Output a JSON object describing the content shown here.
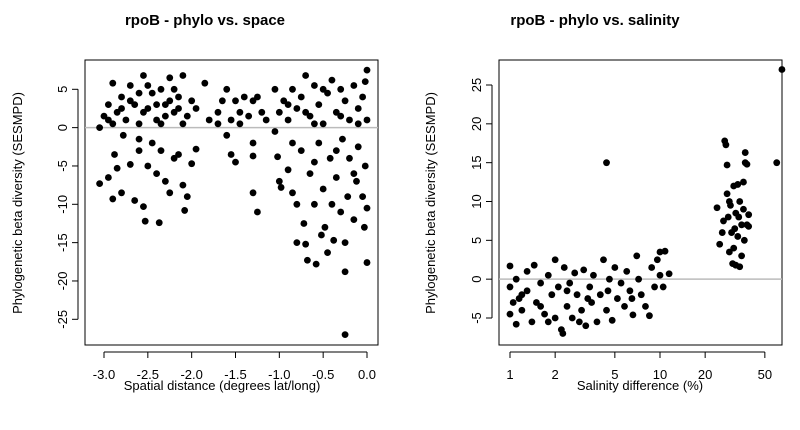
{
  "chart_data": [
    {
      "type": "scatter",
      "title": "rpoB - phylo vs. space",
      "xlabel": "Spatial distance (degrees lat/long)",
      "ylabel": "Phylogenetic beta diversity (SESMPD)",
      "xlim": [
        -3.2,
        0.1
      ],
      "ylim": [
        -28,
        8.5
      ],
      "x_scale": "linear",
      "xticks": [
        -3.0,
        -2.5,
        -2.0,
        -1.5,
        -1.0,
        -0.5,
        0.0
      ],
      "xtick_labels": [
        "-3.0",
        "-2.5",
        "-2.0",
        "-1.5",
        "-1.0",
        "-0.5",
        "0.0"
      ],
      "yticks": [
        5,
        0,
        -5,
        -10,
        -15,
        -20,
        -25
      ],
      "ytick_labels": [
        "5",
        "0",
        "-5",
        "-10",
        "-15",
        "-20",
        "-25"
      ],
      "reference_line_y": 0,
      "grid": false,
      "point_color": "#000000",
      "reference_color": "#bbbbbb",
      "points": [
        [
          -3.05,
          0
        ],
        [
          -3.0,
          1.5
        ],
        [
          -2.95,
          3
        ],
        [
          -2.9,
          5.8
        ],
        [
          -2.85,
          2
        ],
        [
          -2.8,
          4
        ],
        [
          -2.75,
          1
        ],
        [
          -2.7,
          5.5
        ],
        [
          -2.65,
          3
        ],
        [
          -2.6,
          0.5
        ],
        [
          -2.55,
          6.8
        ],
        [
          -2.5,
          2.5
        ],
        [
          -2.45,
          4.5
        ],
        [
          -2.4,
          1
        ],
        [
          -2.35,
          5
        ],
        [
          -2.3,
          3
        ],
        [
          -2.25,
          6.5
        ],
        [
          -2.2,
          2
        ],
        [
          -2.15,
          4
        ],
        [
          -2.1,
          6.8
        ],
        [
          -2.05,
          1.5
        ],
        [
          -2.0,
          3.5
        ],
        [
          -2.9,
          0.5
        ],
        [
          -2.8,
          2.5
        ],
        [
          -2.6,
          4.5
        ],
        [
          -2.4,
          3
        ],
        [
          -2.2,
          5
        ],
        [
          -2.1,
          0.5
        ],
        [
          -2.7,
          3.5
        ],
        [
          -2.5,
          5.5
        ],
        [
          -2.3,
          1.5
        ],
        [
          -2.15,
          2.5
        ],
        [
          -2.95,
          1
        ],
        [
          -2.55,
          2
        ],
        [
          -2.35,
          0.5
        ],
        [
          -2.25,
          3.5
        ],
        [
          -3.05,
          -7.3
        ],
        [
          -2.95,
          -6.5
        ],
        [
          -2.9,
          -9.3
        ],
        [
          -2.88,
          -3.5
        ],
        [
          -2.85,
          -5.3
        ],
        [
          -2.8,
          -8.5
        ],
        [
          -2.78,
          -1
        ],
        [
          -2.7,
          -4.8
        ],
        [
          -2.65,
          -9.5
        ],
        [
          -2.6,
          -3
        ],
        [
          -2.55,
          -10.3
        ],
        [
          -2.53,
          -12.2
        ],
        [
          -2.5,
          -5
        ],
        [
          -2.45,
          -2
        ],
        [
          -2.4,
          -6
        ],
        [
          -2.37,
          -12.4
        ],
        [
          -2.3,
          -7
        ],
        [
          -2.25,
          -8.5
        ],
        [
          -2.2,
          -4
        ],
        [
          -2.15,
          -3.5
        ],
        [
          -2.1,
          -7.5
        ],
        [
          -2.08,
          -10.8
        ],
        [
          -2.05,
          -9
        ],
        [
          -2.0,
          -4.7
        ],
        [
          -1.95,
          -2.8
        ],
        [
          -2.6,
          -1.5
        ],
        [
          -2.35,
          -3
        ],
        [
          -1.95,
          2.5
        ],
        [
          -1.85,
          5.8
        ],
        [
          -1.8,
          1
        ],
        [
          -1.7,
          2
        ],
        [
          -1.65,
          3.5
        ],
        [
          -1.6,
          5
        ],
        [
          -1.55,
          1
        ],
        [
          -1.5,
          3.5
        ],
        [
          -1.45,
          2
        ],
        [
          -1.4,
          4
        ],
        [
          -1.35,
          1.5
        ],
        [
          -1.3,
          3.5
        ],
        [
          -1.25,
          4
        ],
        [
          -1.2,
          2
        ],
        [
          -1.15,
          1
        ],
        [
          -1.6,
          -1
        ],
        [
          -1.55,
          -3.5
        ],
        [
          -1.5,
          -4.5
        ],
        [
          -1.3,
          -2
        ],
        [
          -1.3,
          -3.7
        ],
        [
          -1.3,
          -8.5
        ],
        [
          -1.25,
          -11
        ],
        [
          -1.45,
          0.5
        ],
        [
          -1.7,
          0.5
        ],
        [
          -1.05,
          5
        ],
        [
          -1.0,
          2
        ],
        [
          -0.95,
          3.5
        ],
        [
          -0.9,
          1
        ],
        [
          -0.85,
          5
        ],
        [
          -0.8,
          2.5
        ],
        [
          -0.75,
          4
        ],
        [
          -0.7,
          6.8
        ],
        [
          -0.65,
          1.5
        ],
        [
          -0.6,
          5.5
        ],
        [
          -0.55,
          3
        ],
        [
          -0.5,
          0.5
        ],
        [
          -0.45,
          4.5
        ],
        [
          -0.4,
          6.2
        ],
        [
          -0.35,
          2
        ],
        [
          -0.3,
          5
        ],
        [
          -0.25,
          3.5
        ],
        [
          -0.2,
          1
        ],
        [
          -0.15,
          5.5
        ],
        [
          -0.1,
          2.5
        ],
        [
          -0.05,
          4
        ],
        [
          0,
          7.5
        ],
        [
          0,
          1
        ],
        [
          -0.02,
          6
        ],
        [
          -0.9,
          3
        ],
        [
          -0.7,
          2
        ],
        [
          -0.5,
          5
        ],
        [
          -0.3,
          1.5
        ],
        [
          -0.1,
          0.5
        ],
        [
          -0.6,
          0.5
        ],
        [
          -1.05,
          -0.5
        ],
        [
          -1.02,
          -3.8
        ],
        [
          -1.0,
          -7
        ],
        [
          -0.98,
          -7.8
        ],
        [
          -0.9,
          -5.5
        ],
        [
          -0.85,
          -8.5
        ],
        [
          -0.8,
          -10
        ],
        [
          -0.8,
          -15
        ],
        [
          -0.75,
          -3
        ],
        [
          -0.72,
          -12.5
        ],
        [
          -0.7,
          -15.2
        ],
        [
          -0.68,
          -17.3
        ],
        [
          -0.65,
          -6
        ],
        [
          -0.6,
          -10
        ],
        [
          -0.58,
          -17.8
        ],
        [
          -0.55,
          -2
        ],
        [
          -0.52,
          -14
        ],
        [
          -0.5,
          -8
        ],
        [
          -0.48,
          -13
        ],
        [
          -0.45,
          -16.3
        ],
        [
          -0.42,
          -4
        ],
        [
          -0.4,
          -10
        ],
        [
          -0.38,
          -14.7
        ],
        [
          -0.35,
          -6.5
        ],
        [
          -0.3,
          -11
        ],
        [
          -0.28,
          -1.5
        ],
        [
          -0.25,
          -15
        ],
        [
          -0.25,
          -18.8
        ],
        [
          -0.25,
          -27
        ],
        [
          -0.22,
          -9
        ],
        [
          -0.2,
          -4
        ],
        [
          -0.15,
          -12
        ],
        [
          -0.12,
          -7
        ],
        [
          -0.1,
          -2.5
        ],
        [
          -0.05,
          -9
        ],
        [
          -0.03,
          -13
        ],
        [
          0,
          -17.6
        ],
        [
          0,
          -10.5
        ],
        [
          -0.02,
          -5
        ],
        [
          -0.6,
          -4.5
        ],
        [
          -0.35,
          -3
        ],
        [
          -0.15,
          -6
        ],
        [
          -0.85,
          -2
        ]
      ]
    },
    {
      "type": "scatter",
      "title": "rpoB - phylo vs. salinity",
      "xlabel": "Salinity difference (%)",
      "ylabel": "Phylogenetic beta diversity (SESMPD)",
      "xlim": [
        0.85,
        75
      ],
      "ylim": [
        -8,
        28.5
      ],
      "x_scale": "log",
      "xticks": [
        1,
        2,
        5,
        10,
        20,
        50
      ],
      "xtick_labels": [
        "1",
        "2",
        "5",
        "10",
        "20",
        "50"
      ],
      "yticks": [
        25,
        20,
        15,
        10,
        5,
        0,
        -5
      ],
      "ytick_labels": [
        "25",
        "20",
        "15",
        "10",
        "5",
        "0",
        "-5"
      ],
      "reference_line_y": 0,
      "grid": false,
      "point_color": "#000000",
      "reference_color": "#bbbbbb",
      "points": [
        [
          1,
          1.7
        ],
        [
          1,
          -1
        ],
        [
          1,
          -4.5
        ],
        [
          1.05,
          -3
        ],
        [
          1.1,
          0
        ],
        [
          1.1,
          -5.8
        ],
        [
          1.2,
          -2
        ],
        [
          1.2,
          -4
        ],
        [
          1.3,
          1
        ],
        [
          1.3,
          -1.5
        ],
        [
          1.4,
          -5.5
        ],
        [
          1.45,
          1.8
        ],
        [
          1.5,
          -3
        ],
        [
          1.6,
          -0.5
        ],
        [
          1.7,
          -4.5
        ],
        [
          1.8,
          0.5
        ],
        [
          1.9,
          -2
        ],
        [
          2,
          2.5
        ],
        [
          2,
          -5
        ],
        [
          2.1,
          -1
        ],
        [
          2.2,
          -6.5
        ],
        [
          2.25,
          -7
        ],
        [
          2.3,
          1.5
        ],
        [
          2.4,
          -3.5
        ],
        [
          2.5,
          -0.5
        ],
        [
          2.6,
          -5
        ],
        [
          2.7,
          0.8
        ],
        [
          2.8,
          -2
        ],
        [
          3,
          -4
        ],
        [
          3.1,
          1.2
        ],
        [
          3.2,
          -6
        ],
        [
          3.4,
          -1
        ],
        [
          3.5,
          -3
        ],
        [
          3.6,
          0.5
        ],
        [
          3.8,
          -5.5
        ],
        [
          4,
          -2
        ],
        [
          4.2,
          2.5
        ],
        [
          4.4,
          -4
        ],
        [
          4.6,
          0
        ],
        [
          4.8,
          -5.3
        ],
        [
          5,
          1.5
        ],
        [
          5.2,
          -2.5
        ],
        [
          5.5,
          -0.5
        ],
        [
          5.8,
          -3.5
        ],
        [
          6,
          1
        ],
        [
          6.3,
          -1.5
        ],
        [
          6.6,
          -4.6
        ],
        [
          7,
          3
        ],
        [
          7.2,
          0
        ],
        [
          7.5,
          -2
        ],
        [
          8,
          -3.5
        ],
        [
          8.5,
          -4.7
        ],
        [
          8.8,
          1.5
        ],
        [
          9.2,
          -1
        ],
        [
          9.6,
          2.5
        ],
        [
          10,
          3.5
        ],
        [
          10.5,
          -1
        ],
        [
          10.8,
          3.6
        ],
        [
          11.5,
          0.7
        ],
        [
          10,
          0.5
        ],
        [
          1.15,
          -2.5
        ],
        [
          1.6,
          -3.5
        ],
        [
          2.4,
          -1.5
        ],
        [
          3.3,
          -2.5
        ],
        [
          4.5,
          -1.5
        ],
        [
          6.5,
          -2.5
        ],
        [
          1.8,
          -5.5
        ],
        [
          2.9,
          -5.5
        ],
        [
          4.4,
          15
        ],
        [
          24,
          9.2
        ],
        [
          25,
          4.5
        ],
        [
          26,
          6
        ],
        [
          27,
          17.8
        ],
        [
          27.5,
          17.3
        ],
        [
          28,
          14.7
        ],
        [
          28,
          11
        ],
        [
          28.5,
          8
        ],
        [
          29,
          3.5
        ],
        [
          29,
          10
        ],
        [
          30,
          6
        ],
        [
          30.5,
          2
        ],
        [
          31,
          12
        ],
        [
          31,
          4
        ],
        [
          32,
          8.5
        ],
        [
          32,
          1.8
        ],
        [
          33,
          12.2
        ],
        [
          33,
          5.5
        ],
        [
          34,
          10
        ],
        [
          34,
          1.6
        ],
        [
          35,
          7
        ],
        [
          35,
          3
        ],
        [
          36,
          12.5
        ],
        [
          36,
          9
        ],
        [
          37,
          16.3
        ],
        [
          37,
          15
        ],
        [
          38,
          14.8
        ],
        [
          38,
          7
        ],
        [
          39,
          8.3
        ],
        [
          39,
          6.8
        ],
        [
          26.5,
          7.5
        ],
        [
          29.5,
          9.5
        ],
        [
          31.5,
          6.5
        ],
        [
          33.5,
          8
        ],
        [
          36.5,
          5
        ],
        [
          60,
          15
        ],
        [
          65,
          27
        ]
      ]
    }
  ]
}
